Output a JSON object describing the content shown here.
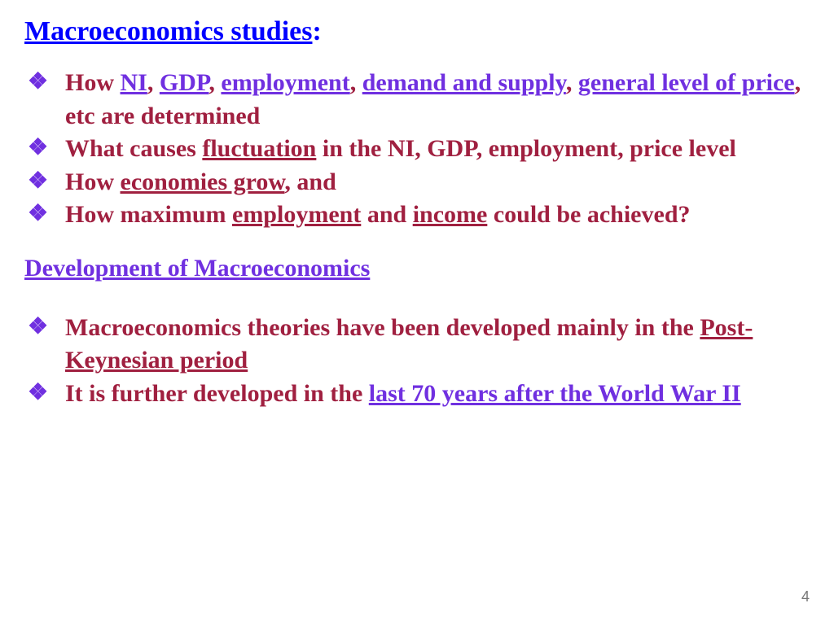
{
  "title": {
    "text": "Macroeconomics studies",
    "colon": ":"
  },
  "section1": {
    "b1": {
      "t1": "How ",
      "u1": "NI",
      "t2": ", ",
      "u2": "GDP",
      "t3": ", ",
      "u3": "employment",
      "t4": ", ",
      "u4": "demand and supply",
      "t5": ", ",
      "u5": "general level of price",
      "t6": ", etc are determined"
    },
    "b2": {
      "t1": "What causes ",
      "u1": "fluctuation",
      "t2": " in the NI, GDP, employment, price level"
    },
    "b3": {
      "t1": "How ",
      "u1": "economies grow",
      "t2": ", and"
    },
    "b4": {
      "t1": "How maximum ",
      "u1": "employment",
      "t2": " and ",
      "u2": "income",
      "t3": " could be achieved?"
    }
  },
  "subhead": "Development of Macroeconomics",
  "section2": {
    "b1": {
      "t1": "Macroeconomics theories have been developed mainly in the ",
      "u1": "Post-Keynesian period"
    },
    "b2": {
      "t1": "It is further developed in the ",
      "u1": "last 70 years after the World War II"
    }
  },
  "pagenum": "4"
}
